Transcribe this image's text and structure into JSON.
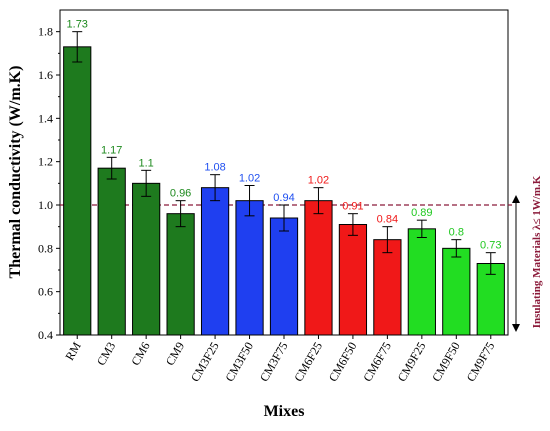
{
  "chart_data": {
    "type": "bar",
    "categories": [
      "RM",
      "CM3",
      "CM6",
      "CM9",
      "CM3F25",
      "CM3F50",
      "CM3F75",
      "CM6F25",
      "CM6F50",
      "CM6F75",
      "CM9F25",
      "CM9F50",
      "CM9F75"
    ],
    "values": [
      1.73,
      1.17,
      1.1,
      0.96,
      1.08,
      1.02,
      0.94,
      1.02,
      0.91,
      0.84,
      0.89,
      0.8,
      0.73
    ],
    "value_labels": [
      "1.73",
      "1.17",
      "1.1",
      "0.96",
      "1.08",
      "1.02",
      "0.94",
      "1.02",
      "0.91",
      "0.84",
      "0.89",
      "0.8",
      "0.73"
    ],
    "errors": [
      0.07,
      0.05,
      0.06,
      0.06,
      0.06,
      0.07,
      0.06,
      0.06,
      0.05,
      0.06,
      0.04,
      0.04,
      0.05
    ],
    "bar_colors": [
      "#1e7a1e",
      "#1e7a1e",
      "#1e7a1e",
      "#1e7a1e",
      "#1f3ff0",
      "#1f3ff0",
      "#1f3ff0",
      "#f01818",
      "#f01818",
      "#f01818",
      "#22dd22",
      "#22dd22",
      "#22dd22"
    ],
    "label_colors": [
      "#1e8a1e",
      "#1e8a1e",
      "#1e8a1e",
      "#1e8a1e",
      "#1f4ff0",
      "#1f4ff0",
      "#1f4ff0",
      "#f01818",
      "#f01818",
      "#f01818",
      "#1ec81e",
      "#1ec81e",
      "#1ec81e"
    ],
    "xlabel": "Mixes",
    "ylabel": "Thermal conductivity (W/m.K)",
    "ylim": [
      0.4,
      1.9
    ],
    "yticks": [
      "0.4",
      "0.6",
      "0.8",
      "1.0",
      "1.2",
      "1.4",
      "1.6",
      "1.8"
    ],
    "threshold": 1.0,
    "threshold_label": "Insulating Materials λ≤ 1W/m.K",
    "threshold_color": "#8b1a3a",
    "grid": false
  }
}
